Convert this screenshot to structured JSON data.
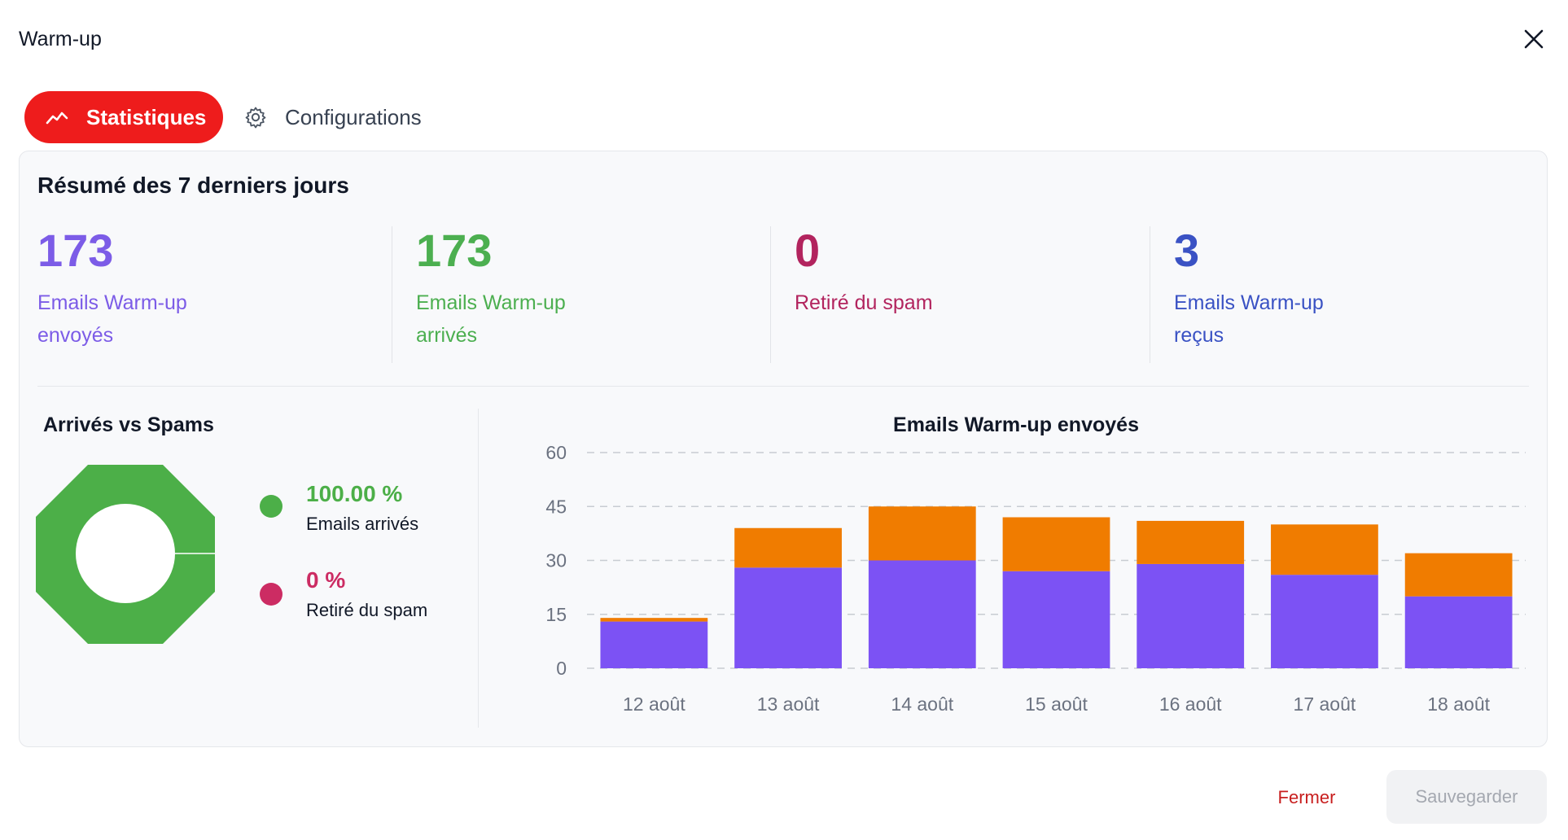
{
  "dialog": {
    "title": "Warm-up"
  },
  "tabs": [
    {
      "label": "Statistiques",
      "active": true,
      "icon": "trend-icon"
    },
    {
      "label": "Configurations",
      "active": false,
      "icon": "gear-icon"
    }
  ],
  "summary": {
    "title": "Résumé des 7 derniers jours",
    "stats": [
      {
        "value": "173",
        "label": "Emails Warm-up envoyés",
        "color": "#7c5ce7"
      },
      {
        "value": "173",
        "label": "Emails Warm-up arrivés",
        "color": "#4caf50"
      },
      {
        "value": "0",
        "label": "Retiré du spam",
        "color": "#b2245e"
      },
      {
        "value": "3",
        "label": "Emails Warm-up reçus",
        "color": "#3a52c4"
      }
    ]
  },
  "donut": {
    "title": "Arrivés vs Spams",
    "legend": [
      {
        "pct": "100.00 %",
        "label": "Emails arrivés",
        "color": "#4caf48",
        "pct_color": "#4caf48"
      },
      {
        "pct": "0 %",
        "label": "Retiré du spam",
        "color": "#cc2c63",
        "pct_color": "#cc2c63"
      }
    ]
  },
  "chart_data": {
    "type": "bar",
    "stacked": true,
    "title": "Emails Warm-up envoyés",
    "categories": [
      "12 août",
      "13 août",
      "14 août",
      "15 août",
      "16 août",
      "17 août",
      "18 août"
    ],
    "series": [
      {
        "values": [
          13,
          28,
          30,
          27,
          29,
          26,
          20
        ],
        "color": "#7c52f4"
      },
      {
        "values": [
          1,
          11,
          15,
          15,
          12,
          14,
          12
        ],
        "color": "#f07c00"
      }
    ],
    "ylim": [
      0,
      60
    ],
    "yticks": [
      0,
      15,
      30,
      45,
      60
    ],
    "grid": true
  },
  "footer": {
    "close_label": "Fermer",
    "save_label": "Sauvegarder"
  }
}
